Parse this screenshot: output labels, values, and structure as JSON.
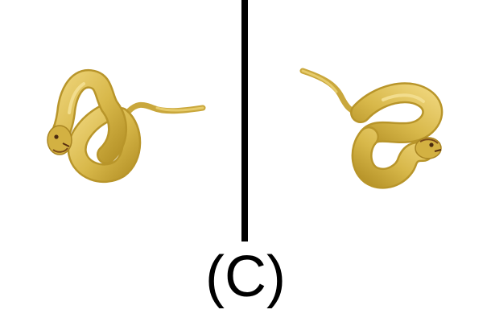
{
  "figure": {
    "caption": "(C)",
    "background_color": "#ffffff",
    "divider_color": "#000000",
    "snake_color": "#d8b84a",
    "snake_shadow_color": "#b8952a",
    "snake_highlight_color": "#eed479",
    "panels": [
      {
        "id": "left",
        "subject": "snake-icon"
      },
      {
        "id": "right",
        "subject": "snake-icon"
      }
    ]
  }
}
